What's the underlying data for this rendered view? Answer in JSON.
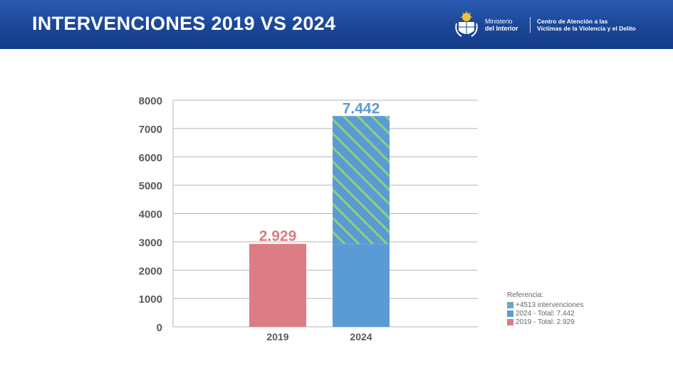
{
  "header": {
    "title": "INTERVENCIONES 2019 VS 2024",
    "ministry_line1": "Ministerio",
    "ministry_line2": "del Interior",
    "center_line1": "Centro de Atención a las",
    "center_line2": "Víctimas de la Violencia y el Delito"
  },
  "colors": {
    "header": "#1b4697",
    "bar2019": "#dc7c84",
    "bar2024": "#5b9bd5",
    "stripe": "#8ed07a",
    "label2019": "#dc7c84",
    "label2024": "#5b9bd5"
  },
  "chart_data": {
    "type": "bar",
    "categories": [
      "2019",
      "2024"
    ],
    "series": [
      {
        "name": "2019 - Total: 2.929",
        "values": [
          2929,
          0
        ]
      },
      {
        "name": "2024 - Total: 7.442",
        "values": [
          0,
          2929
        ]
      },
      {
        "name": "+4513 intervenciones",
        "values": [
          0,
          4513
        ]
      }
    ],
    "totals": [
      2929,
      7442
    ],
    "data_labels": [
      "2.929",
      "7.442"
    ],
    "yticks": [
      0,
      1000,
      2000,
      3000,
      4000,
      5000,
      6000,
      7000,
      8000
    ],
    "ylim": [
      0,
      8000
    ],
    "grid": true,
    "legend_title": "Referencia:",
    "legend": [
      "+4513 intervenciones",
      "2024 - Total: 7.442",
      "2019 - Total: 2.929"
    ],
    "legend_position": "bottom-right"
  }
}
